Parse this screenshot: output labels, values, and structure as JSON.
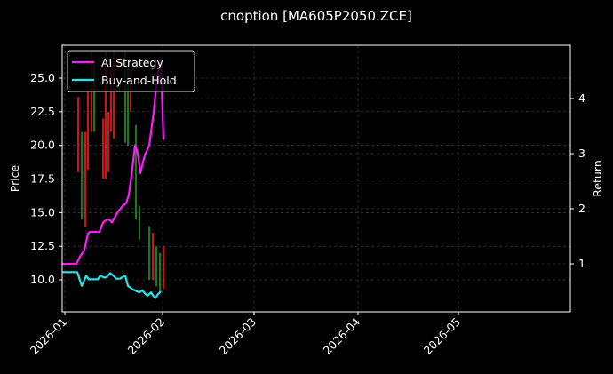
{
  "chart_data": {
    "type": "line",
    "title": "cnoption [MA605P2050.ZCE]",
    "xlabel": "",
    "ylabel": "Price",
    "y2label": "Return",
    "x_ticks": [
      "2026-01",
      "2026-02",
      "2026-03",
      "2026-04",
      "2026-05"
    ],
    "y_ticks": [
      "10.0",
      "12.5",
      "15.0",
      "17.5",
      "20.0",
      "22.5",
      "25.0"
    ],
    "y2_ticks": [
      "1",
      "2",
      "3",
      "4"
    ],
    "ylim": [
      7.8,
      27.5
    ],
    "y2lim": [
      0.15,
      5.0
    ],
    "grid": true,
    "legend_position": "upper left",
    "legend": [
      "AI Strategy",
      "Buy-and-Hold"
    ],
    "colors": {
      "background": "#000000",
      "ai_strategy": "#ff1aff",
      "buy_and_hold": "#22e5ee",
      "candle_up": "#1f9a1f",
      "candle_down": "#ff1a1a",
      "grid": "#4a4a4a",
      "axes": "#ffffff"
    },
    "candles": [
      {
        "x": 88,
        "top": 23.6,
        "bottom": 18.0,
        "color": "down"
      },
      {
        "x": 92,
        "top": 21.0,
        "bottom": 14.5,
        "color": "up"
      },
      {
        "x": 96,
        "top": 21.0,
        "bottom": 13.9,
        "color": "down"
      },
      {
        "x": 99,
        "top": 24.0,
        "bottom": 18.2,
        "color": "down"
      },
      {
        "x": 103,
        "top": 27.0,
        "bottom": 21.0,
        "color": "down"
      },
      {
        "x": 106,
        "top": 26.0,
        "bottom": 21.0,
        "color": "up"
      },
      {
        "x": 116,
        "top": 22.0,
        "bottom": 17.5,
        "color": "down"
      },
      {
        "x": 119,
        "top": 27.0,
        "bottom": 17.5,
        "color": "down"
      },
      {
        "x": 122,
        "top": 22.5,
        "bottom": 18.0,
        "color": "down"
      },
      {
        "x": 125,
        "top": 26.0,
        "bottom": 21.0,
        "color": "down"
      },
      {
        "x": 128,
        "top": 27.0,
        "bottom": 20.5,
        "color": "down"
      },
      {
        "x": 141,
        "top": 27.0,
        "bottom": 20.2,
        "color": "up"
      },
      {
        "x": 144,
        "top": 26.0,
        "bottom": 20.0,
        "color": "up"
      },
      {
        "x": 147,
        "top": 25.5,
        "bottom": 22.5,
        "color": "down"
      },
      {
        "x": 153,
        "top": 21.5,
        "bottom": 14.5,
        "color": "up"
      },
      {
        "x": 157,
        "top": 15.5,
        "bottom": 13.0,
        "color": "up"
      },
      {
        "x": 168,
        "top": 14.0,
        "bottom": 10.0,
        "color": "up"
      },
      {
        "x": 172,
        "top": 13.5,
        "bottom": 10.0,
        "color": "down"
      },
      {
        "x": 176,
        "top": 12.5,
        "bottom": 9.5,
        "color": "up"
      },
      {
        "x": 180,
        "top": 12.0,
        "bottom": 9.0,
        "color": "up"
      },
      {
        "x": 184,
        "top": 12.5,
        "bottom": 9.3,
        "color": "down"
      }
    ],
    "series": [
      {
        "name": "AI Strategy",
        "axis": "right",
        "points": [
          [
            70,
            1.0
          ],
          [
            86,
            1.0
          ],
          [
            90,
            1.13
          ],
          [
            95,
            1.25
          ],
          [
            99,
            1.55
          ],
          [
            101,
            1.58
          ],
          [
            112,
            1.58
          ],
          [
            116,
            1.75
          ],
          [
            120,
            1.8
          ],
          [
            123,
            1.8
          ],
          [
            126,
            1.75
          ],
          [
            133,
            1.95
          ],
          [
            138,
            2.05
          ],
          [
            142,
            2.1
          ],
          [
            145,
            2.25
          ],
          [
            148,
            2.6
          ],
          [
            152,
            3.15
          ],
          [
            155,
            3.02
          ],
          [
            158,
            2.65
          ],
          [
            163,
            2.97
          ],
          [
            168,
            3.15
          ],
          [
            173,
            3.75
          ],
          [
            177,
            4.4
          ],
          [
            181,
            4.7
          ],
          [
            184,
            3.25
          ]
        ]
      },
      {
        "name": "Buy-and-Hold",
        "axis": "right",
        "points": [
          [
            70,
            0.85
          ],
          [
            87,
            0.85
          ],
          [
            92,
            0.6
          ],
          [
            97,
            0.78
          ],
          [
            100,
            0.72
          ],
          [
            110,
            0.72
          ],
          [
            113,
            0.79
          ],
          [
            117,
            0.75
          ],
          [
            120,
            0.76
          ],
          [
            124,
            0.83
          ],
          [
            128,
            0.78
          ],
          [
            131,
            0.73
          ],
          [
            135,
            0.73
          ],
          [
            141,
            0.79
          ],
          [
            144,
            0.6
          ],
          [
            150,
            0.53
          ],
          [
            157,
            0.48
          ],
          [
            160,
            0.52
          ],
          [
            164,
            0.45
          ],
          [
            166,
            0.42
          ],
          [
            170,
            0.48
          ],
          [
            173,
            0.41
          ],
          [
            175,
            0.38
          ],
          [
            178,
            0.45
          ],
          [
            181,
            0.5
          ]
        ]
      }
    ]
  }
}
